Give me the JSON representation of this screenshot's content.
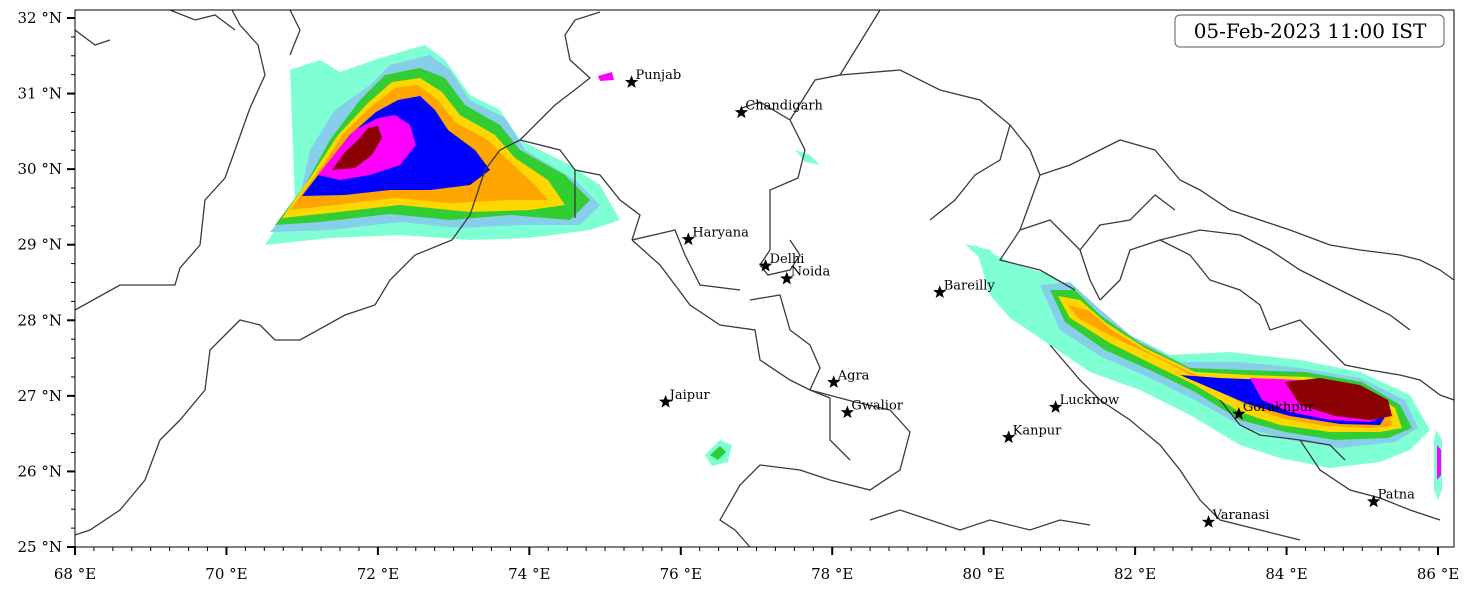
{
  "map": {
    "timestamp_label": "05-Feb-2023 11:00 IST",
    "lon_range": [
      68,
      86.2
    ],
    "lat_range": [
      25,
      32.1
    ],
    "x_ticks": [
      {
        "value": 68,
        "label": "68 °E"
      },
      {
        "value": 70,
        "label": "70 °E"
      },
      {
        "value": 72,
        "label": "72 °E"
      },
      {
        "value": 74,
        "label": "74 °E"
      },
      {
        "value": 76,
        "label": "76 °E"
      },
      {
        "value": 78,
        "label": "78 °E"
      },
      {
        "value": 80,
        "label": "80 °E"
      },
      {
        "value": 82,
        "label": "82 °E"
      },
      {
        "value": 84,
        "label": "84 °E"
      },
      {
        "value": 86,
        "label": "86 °E"
      }
    ],
    "y_ticks": [
      {
        "value": 25,
        "label": "25 °N"
      },
      {
        "value": 26,
        "label": "26 °N"
      },
      {
        "value": 27,
        "label": "27 °N"
      },
      {
        "value": 28,
        "label": "28 °N"
      },
      {
        "value": 29,
        "label": "29 °N"
      },
      {
        "value": 30,
        "label": "30 °N"
      },
      {
        "value": 31,
        "label": "31 °N"
      },
      {
        "value": 32,
        "label": "32 °N"
      }
    ],
    "cities": [
      {
        "name": "Punjab",
        "lon": 75.35,
        "lat": 31.15
      },
      {
        "name": "Chandigarh",
        "lon": 76.8,
        "lat": 30.75
      },
      {
        "name": "Haryana",
        "lon": 76.1,
        "lat": 29.07
      },
      {
        "name": "Delhi",
        "lon": 77.12,
        "lat": 28.72
      },
      {
        "name": "Noida",
        "lon": 77.4,
        "lat": 28.55
      },
      {
        "name": "Bareilly",
        "lon": 79.42,
        "lat": 28.37
      },
      {
        "name": "Agra",
        "lon": 78.02,
        "lat": 27.18
      },
      {
        "name": "Jaipur",
        "lon": 75.8,
        "lat": 26.92
      },
      {
        "name": "Gwalior",
        "lon": 78.2,
        "lat": 26.78
      },
      {
        "name": "Lucknow",
        "lon": 80.95,
        "lat": 26.85
      },
      {
        "name": "Kanpur",
        "lon": 80.33,
        "lat": 26.45
      },
      {
        "name": "Gorakhpur",
        "lon": 83.37,
        "lat": 26.76
      },
      {
        "name": "Varanasi",
        "lon": 82.97,
        "lat": 25.33
      },
      {
        "name": "Patna",
        "lon": 85.15,
        "lat": 25.6
      }
    ],
    "intensity_colors": [
      "#7fffd4",
      "#87ceeb",
      "#32cd32",
      "#ffd700",
      "#ffa500",
      "#0000ff",
      "#ff00ff",
      "#8b0000"
    ]
  }
}
